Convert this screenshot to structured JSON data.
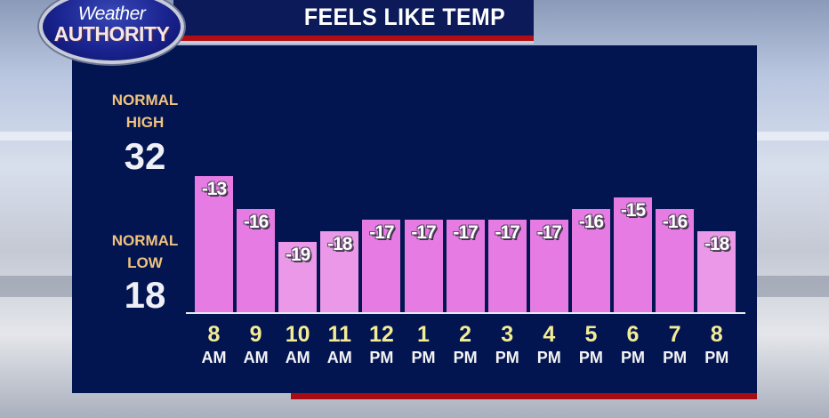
{
  "header": {
    "logo_line1": "Weather",
    "logo_line2": "AUTHORITY",
    "title": "FEELS LIKE TEMP"
  },
  "normals": {
    "high_label_1": "NORMAL",
    "high_label_2": "HIGH",
    "high_value": "32",
    "low_label_1": "NORMAL",
    "low_label_2": "LOW",
    "low_value": "18"
  },
  "colors": {
    "panel": "#021550",
    "bar": "#e67be4",
    "bar_light": "#eb98e9",
    "accent_red": "#b30d14",
    "hour_text": "#f3ec95",
    "normal_label": "#f0c27e"
  },
  "chart_data": {
    "type": "bar",
    "title": "FEELS LIKE TEMP",
    "xlabel": "",
    "ylabel": "",
    "categories": [
      "8 AM",
      "9 AM",
      "10 AM",
      "11 AM",
      "12 PM",
      "1 PM",
      "2 PM",
      "3 PM",
      "4 PM",
      "5 PM",
      "6 PM",
      "7 PM",
      "8 PM"
    ],
    "values": [
      -13,
      -16,
      -19,
      -18,
      -17,
      -17,
      -17,
      -17,
      -17,
      -16,
      -15,
      -16,
      -18
    ],
    "annotations": [
      "NORMAL HIGH 32",
      "NORMAL LOW 18"
    ],
    "grid": false,
    "legend": "none"
  },
  "bars": [
    {
      "value": "-13",
      "hour": "8",
      "ampm": "AM"
    },
    {
      "value": "-16",
      "hour": "9",
      "ampm": "AM"
    },
    {
      "value": "-19",
      "hour": "10",
      "ampm": "AM"
    },
    {
      "value": "-18",
      "hour": "11",
      "ampm": "AM"
    },
    {
      "value": "-17",
      "hour": "12",
      "ampm": "PM"
    },
    {
      "value": "-17",
      "hour": "1",
      "ampm": "PM"
    },
    {
      "value": "-17",
      "hour": "2",
      "ampm": "PM"
    },
    {
      "value": "-17",
      "hour": "3",
      "ampm": "PM"
    },
    {
      "value": "-17",
      "hour": "4",
      "ampm": "PM"
    },
    {
      "value": "-16",
      "hour": "5",
      "ampm": "PM"
    },
    {
      "value": "-15",
      "hour": "6",
      "ampm": "PM"
    },
    {
      "value": "-16",
      "hour": "7",
      "ampm": "PM"
    },
    {
      "value": "-18",
      "hour": "8",
      "ampm": "PM"
    }
  ]
}
